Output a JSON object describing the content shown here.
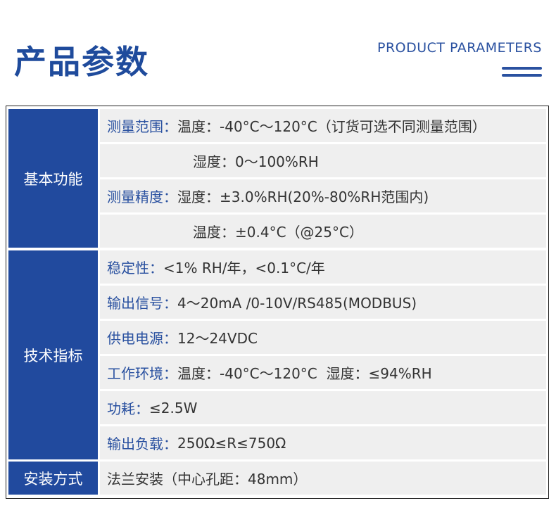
{
  "header": {
    "title": "产品参数",
    "subtitle": "PRODUCT PARAMETERS",
    "accent": "#214a9e"
  },
  "groups": [
    {
      "category": "基本功能",
      "rows": [
        {
          "label": "测量范围：",
          "value": "温度：-40°C～120°C（订货可选不同测量范围）"
        },
        {
          "label": "",
          "value": "湿度：0～100%RH"
        },
        {
          "label": "测量精度：",
          "value": "湿度：±3.0%RH(20%-80%RH范围内)"
        },
        {
          "label": "",
          "value": "温度：±0.4°C（@25°C）"
        }
      ]
    },
    {
      "category": "技术指标",
      "rows": [
        {
          "label": "稳定性：",
          "value": "<1% RH/年，<0.1°C/年"
        },
        {
          "label": "输出信号：",
          "value": "4～20mA /0-10V/RS485(MODBUS)"
        },
        {
          "label": "供电电源：",
          "value": "12～24VDC"
        },
        {
          "label": "工作环境：",
          "value": "温度：-40°C～120°C  湿度：≤94%RH"
        },
        {
          "label": "功耗：",
          "value": "≤2.5W"
        },
        {
          "label": "输出负载：",
          "value": "250Ω≤R≤750Ω"
        }
      ]
    },
    {
      "category": "安装方式",
      "rows": [
        {
          "label": "",
          "value": "法兰安装（中心孔距：48mm）"
        }
      ]
    }
  ]
}
